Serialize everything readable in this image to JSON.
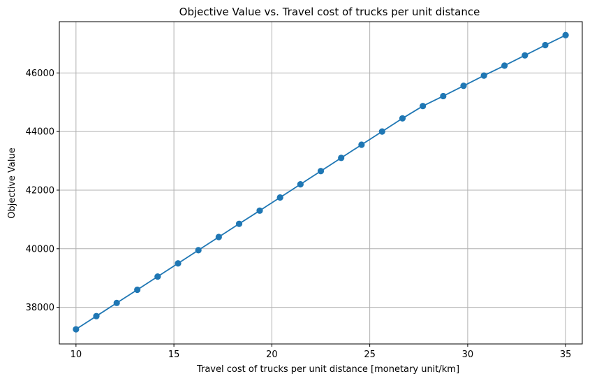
{
  "chart_data": {
    "type": "line",
    "title": "Objective Value vs. Travel cost of trucks per unit distance",
    "xlabel": "Travel cost of trucks per unit distance [monetary unit/km]",
    "ylabel": "Objective Value",
    "xlim": [
      9.15,
      35.85
    ],
    "ylim": [
      36750,
      47750
    ],
    "xticks": [
      10,
      15,
      20,
      25,
      30,
      35
    ],
    "yticks": [
      38000,
      40000,
      42000,
      44000,
      46000
    ],
    "grid": true,
    "marker": "circle",
    "series": [
      {
        "color": "#1f77b4",
        "x": [
          10,
          11.04,
          12.08,
          13.13,
          14.17,
          15.21,
          16.25,
          17.29,
          18.33,
          19.38,
          20.42,
          21.46,
          22.5,
          23.54,
          24.58,
          25.63,
          26.67,
          27.71,
          28.75,
          29.79,
          30.83,
          31.88,
          32.92,
          33.96,
          35
        ],
        "y": [
          37250,
          37700,
          38150,
          38600,
          39050,
          39500,
          39950,
          40400,
          40850,
          41300,
          41750,
          42200,
          42650,
          43100,
          43550,
          44000,
          44450,
          44870,
          45210,
          45560,
          45910,
          46250,
          46600,
          46950,
          47290
        ]
      }
    ]
  }
}
